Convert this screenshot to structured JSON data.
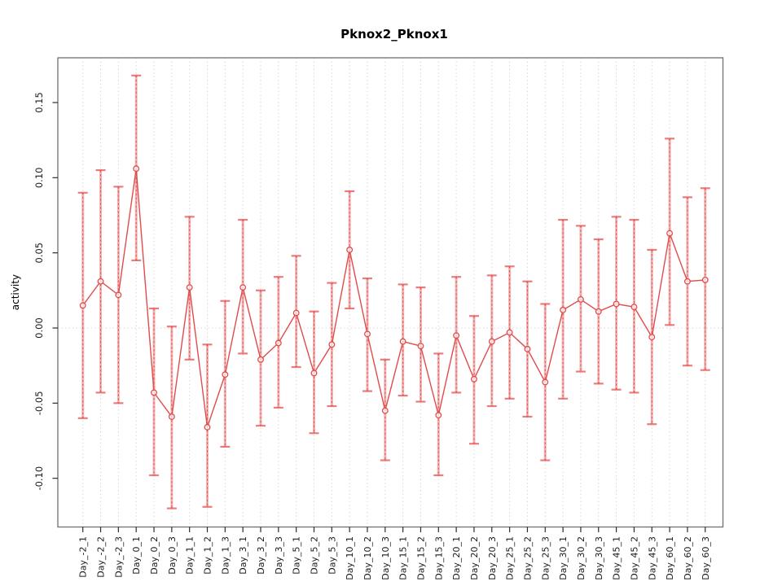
{
  "chart_data": {
    "type": "line",
    "title": "Pknox2_Pknox1",
    "xlabel": "",
    "ylabel": "activity",
    "legend_position": "none",
    "grid": "vertical dotted gridlines at each category; dotted horizontal line at y=0",
    "ylim": [
      -0.132,
      0.18
    ],
    "ytick_labels": [
      "-0.10",
      "-0.05",
      "0.00",
      "0.05",
      "0.10",
      "0.15"
    ],
    "ytick_values": [
      -0.1,
      -0.05,
      0.0,
      0.05,
      0.1,
      0.15
    ],
    "categories": [
      "Day_-2_1",
      "Day_-2_2",
      "Day_-2_3",
      "Day_0_1",
      "Day_0_2",
      "Day_0_3",
      "Day_1_1",
      "Day_1_2",
      "Day_1_3",
      "Day_3_1",
      "Day_3_2",
      "Day_3_3",
      "Day_5_1",
      "Day_5_2",
      "Day_5_3",
      "Day_10_1",
      "Day_10_2",
      "Day_10_3",
      "Day_15_1",
      "Day_15_2",
      "Day_15_3",
      "Day_20_1",
      "Day_20_2",
      "Day_20_3",
      "Day_25_1",
      "Day_25_2",
      "Day_25_3",
      "Day_30_1",
      "Day_30_2",
      "Day_30_3",
      "Day_45_1",
      "Day_45_2",
      "Day_45_3",
      "Day_60_1",
      "Day_60_2",
      "Day_60_3"
    ],
    "series": [
      {
        "name": "activity",
        "marker": "open-circle",
        "values": [
          0.015,
          0.031,
          0.022,
          0.106,
          -0.043,
          -0.059,
          0.027,
          -0.066,
          -0.031,
          0.027,
          -0.021,
          -0.01,
          0.01,
          -0.03,
          -0.011,
          0.052,
          -0.004,
          -0.055,
          -0.009,
          -0.012,
          -0.058,
          -0.005,
          -0.034,
          -0.009,
          -0.003,
          -0.014,
          -0.036,
          0.012,
          0.019,
          0.011,
          0.016,
          0.014,
          -0.006,
          0.063,
          0.031,
          0.032
        ],
        "error_lower": [
          -0.06,
          -0.043,
          -0.05,
          0.045,
          -0.098,
          -0.12,
          -0.021,
          -0.119,
          -0.079,
          -0.017,
          -0.065,
          -0.053,
          -0.026,
          -0.07,
          -0.052,
          0.013,
          -0.042,
          -0.088,
          -0.045,
          -0.049,
          -0.098,
          -0.043,
          -0.077,
          -0.052,
          -0.047,
          -0.059,
          -0.088,
          -0.047,
          -0.029,
          -0.037,
          -0.041,
          -0.043,
          -0.064,
          0.002,
          -0.025,
          -0.028
        ],
        "error_upper": [
          0.09,
          0.105,
          0.094,
          0.168,
          0.013,
          0.001,
          0.074,
          -0.011,
          0.018,
          0.072,
          0.025,
          0.034,
          0.048,
          0.011,
          0.03,
          0.091,
          0.033,
          -0.021,
          0.029,
          0.027,
          -0.017,
          0.034,
          0.008,
          0.035,
          0.041,
          0.031,
          0.016,
          0.072,
          0.068,
          0.059,
          0.074,
          0.072,
          0.052,
          0.126,
          0.087,
          0.093
        ]
      }
    ],
    "colors": {
      "series_line": "#e14b4b",
      "error_bar_shaft": "rgba(228,74,74,0.42)",
      "error_bar_dash": "#dd4646",
      "error_bar_cap": "rgba(228,74,74,0.72)",
      "grid_line": "#d8d8d8",
      "zero_line": "#d8d8d8",
      "plot_border": "#6f6f6f",
      "tick": "#2b2b2b",
      "tick_label": "#1a1a1a"
    }
  }
}
